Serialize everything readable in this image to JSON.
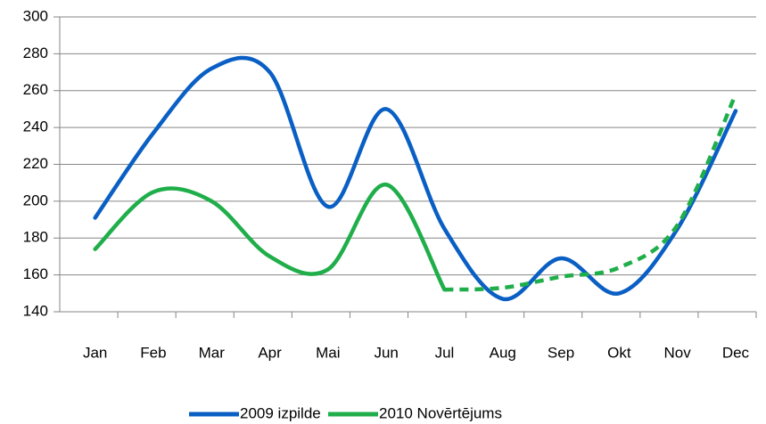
{
  "chart_data": {
    "type": "line",
    "categories": [
      "Jan",
      "Feb",
      "Mar",
      "Apr",
      "Mai",
      "Jun",
      "Jul",
      "Aug",
      "Sep",
      "Okt",
      "Nov",
      "Dec"
    ],
    "series": [
      {
        "name": "2009 izpilde",
        "color": "#0a5fc4",
        "values": [
          191,
          237,
          272,
          270,
          197,
          250,
          185,
          147,
          169,
          150,
          185,
          249
        ]
      },
      {
        "name": "2010 Novērtējums",
        "color": "#1fae4a",
        "values": [
          174,
          205,
          200,
          170,
          163,
          209,
          152,
          153,
          159,
          164,
          187,
          258
        ],
        "dashed_from": "Jul"
      }
    ],
    "ylim": [
      140,
      300
    ],
    "yticks": [
      140,
      160,
      180,
      200,
      220,
      240,
      260,
      280,
      300
    ],
    "grid": true,
    "legend": "bottom"
  }
}
